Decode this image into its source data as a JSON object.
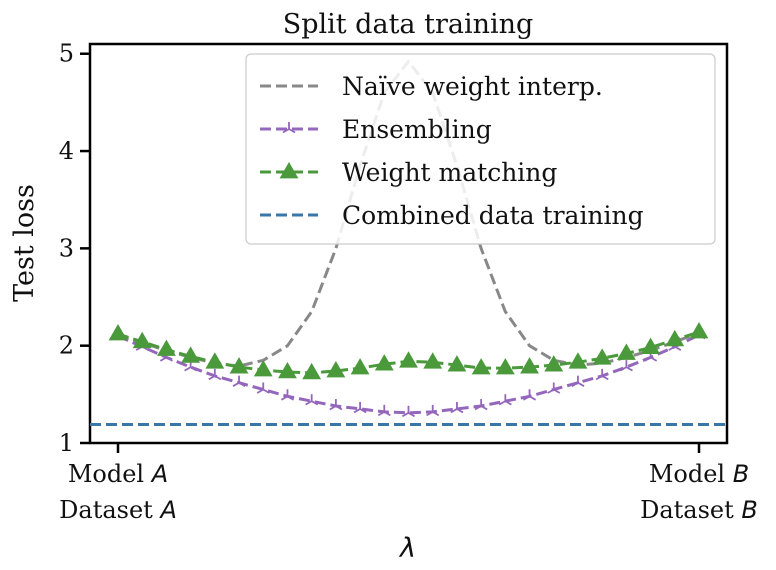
{
  "chart_data": {
    "type": "line",
    "title": "Split data training",
    "ylabel": "Test loss",
    "xlabel": "λ",
    "xlim": [
      0,
      1
    ],
    "ylim": [
      1,
      5.1
    ],
    "yticks": [
      1,
      2,
      3,
      4,
      5
    ],
    "xticks": [
      {
        "x": 0,
        "line1_prefix": "Model ",
        "line1_italic": "A",
        "line2_prefix": "Dataset ",
        "line2_italic": "A"
      },
      {
        "x": 1,
        "line1_prefix": "Model ",
        "line1_italic": "B",
        "line2_prefix": "Dataset ",
        "line2_italic": "B"
      }
    ],
    "legend_position": "top-right",
    "grid": false,
    "x": [
      0,
      0.04167,
      0.08333,
      0.125,
      0.16667,
      0.20833,
      0.25,
      0.29167,
      0.33333,
      0.375,
      0.41667,
      0.45833,
      0.5,
      0.54167,
      0.58333,
      0.625,
      0.66667,
      0.70833,
      0.75,
      0.79167,
      0.83333,
      0.875,
      0.91667,
      0.95833,
      1
    ],
    "series": [
      {
        "name": "Naïve weight interp.",
        "color": "#888888",
        "dash": "dashed",
        "marker": "none",
        "values": [
          2.1,
          2.03,
          1.95,
          1.88,
          1.82,
          1.79,
          1.85,
          2.0,
          2.35,
          3.0,
          3.85,
          4.6,
          4.92,
          4.6,
          3.85,
          3.0,
          2.35,
          2.0,
          1.85,
          1.8,
          1.82,
          1.88,
          1.95,
          2.04,
          2.13
        ]
      },
      {
        "name": "Ensembling",
        "color": "#9467bd",
        "dash": "dashed",
        "marker": "tri",
        "values": [
          2.1,
          1.99,
          1.88,
          1.78,
          1.69,
          1.62,
          1.55,
          1.48,
          1.43,
          1.38,
          1.35,
          1.32,
          1.31,
          1.32,
          1.35,
          1.38,
          1.43,
          1.48,
          1.55,
          1.62,
          1.69,
          1.78,
          1.88,
          1.99,
          2.11
        ]
      },
      {
        "name": "Weight matching",
        "color": "#4a9a3c",
        "dash": "dashed",
        "marker": "triangle",
        "values": [
          2.12,
          2.04,
          1.96,
          1.89,
          1.83,
          1.78,
          1.75,
          1.73,
          1.72,
          1.74,
          1.77,
          1.81,
          1.84,
          1.83,
          1.8,
          1.77,
          1.77,
          1.78,
          1.8,
          1.83,
          1.87,
          1.92,
          1.98,
          2.06,
          2.14
        ]
      },
      {
        "name": "Combined data training",
        "color": "#3a76a8",
        "dash": "dashed",
        "marker": "none",
        "values": [
          1.19,
          1.19,
          1.19,
          1.19,
          1.19,
          1.19,
          1.19,
          1.19,
          1.19,
          1.19,
          1.19,
          1.19,
          1.19,
          1.19,
          1.19,
          1.19,
          1.19,
          1.19,
          1.19,
          1.19,
          1.19,
          1.19,
          1.19,
          1.19,
          1.19
        ]
      }
    ]
  }
}
